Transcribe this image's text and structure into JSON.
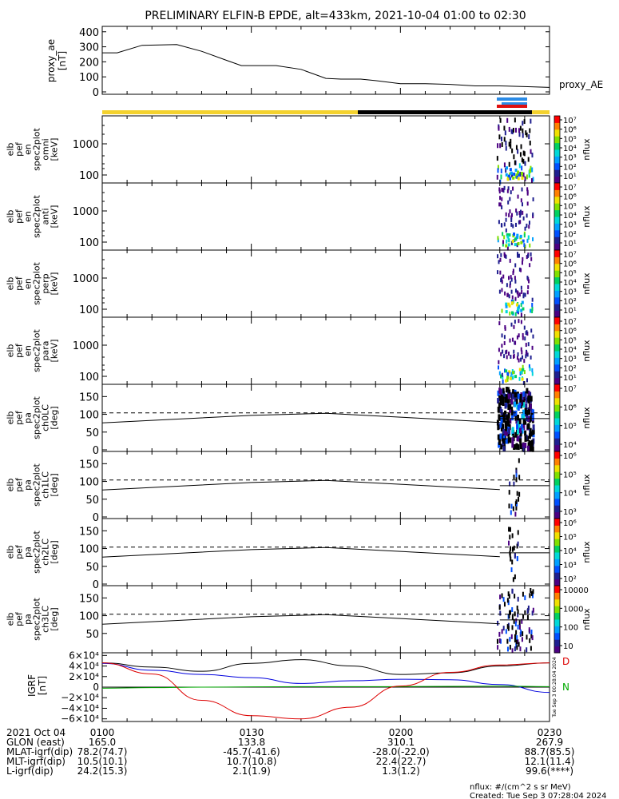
{
  "title": "PRELIMINARY ELFIN-B EPDE, alt=433km, 2021-10-04 01:00 to 02:30",
  "colors": {
    "day": "#f4d22e",
    "night": "#000000",
    "seg_blue": "#2b8be6",
    "seg_red": "#e01010",
    "bx": "#0000dd",
    "by": "#00aa00",
    "bz": "#dd0000",
    "btotal": "#000000"
  },
  "chart_data": [
    {
      "type": "line",
      "panel": "proxy_ae",
      "ylabel": "proxy_ae [nT]",
      "legend": "proxy_AE",
      "ylim": [
        0,
        420
      ],
      "yticks": [
        "400",
        "300",
        "200",
        "100",
        "0"
      ],
      "x_minutes": [
        0,
        3,
        8,
        15,
        20,
        25,
        28,
        32,
        35,
        40,
        45,
        48,
        52,
        55,
        60,
        65,
        70,
        75,
        80,
        85,
        90
      ],
      "values": [
        260,
        260,
        310,
        315,
        270,
        210,
        175,
        175,
        175,
        150,
        90,
        85,
        85,
        75,
        55,
        55,
        50,
        40,
        40,
        35,
        30
      ]
    },
    {
      "type": "heatmap",
      "panel": "elb_pef_en_spec2plot_omni",
      "ylabel": [
        "elb",
        "pef",
        "en",
        "spec2plot",
        "omni",
        "[keV]"
      ],
      "scale": "log",
      "yticks": [
        "1000",
        "100"
      ],
      "colorbar": {
        "label": "nflux",
        "ticks": [
          "10⁷",
          "10⁶",
          "10⁵",
          "10⁴",
          "10³",
          "10²",
          "10¹"
        ]
      },
      "active_window_minutes": [
        80,
        85
      ]
    },
    {
      "type": "heatmap",
      "panel": "elb_pef_en_spec2plot_anti",
      "ylabel": [
        "elb",
        "pef",
        "en",
        "spec2plot",
        "anti",
        "[keV]"
      ],
      "scale": "log",
      "yticks": [
        "1000",
        "100"
      ],
      "colorbar": {
        "label": "nflux",
        "ticks": [
          "10⁷",
          "10⁶",
          "10⁵",
          "10⁴",
          "10³",
          "10²",
          "10¹"
        ]
      },
      "active_window_minutes": [
        80,
        85
      ]
    },
    {
      "type": "heatmap",
      "panel": "elb_pef_en_spec2plot_perp",
      "ylabel": [
        "elb",
        "pef",
        "en",
        "spec2plot",
        "perp",
        "[keV]"
      ],
      "scale": "log",
      "yticks": [
        "1000",
        "100"
      ],
      "colorbar": {
        "label": "nflux",
        "ticks": [
          "10⁷",
          "10⁶",
          "10⁵",
          "10⁴",
          "10³",
          "10²",
          "10¹"
        ]
      },
      "active_window_minutes": [
        80,
        85
      ]
    },
    {
      "type": "heatmap",
      "panel": "elb_pef_en_spec2plot_para",
      "ylabel": [
        "elb",
        "pef",
        "en",
        "spec2plot",
        "para",
        "[keV]"
      ],
      "scale": "log",
      "yticks": [
        "1000",
        "100"
      ],
      "colorbar": {
        "label": "nflux",
        "ticks": [
          "10⁷",
          "10⁶",
          "10⁵",
          "10⁴",
          "10³",
          "10²",
          "10¹"
        ]
      },
      "active_window_minutes": [
        80,
        85
      ]
    },
    {
      "type": "heatmap",
      "panel": "elb_pef_pa_spec2plot_ch0LC",
      "ylabel": [
        "elb",
        "pef",
        "pa",
        "spec2plot",
        "ch0LC",
        "[deg]"
      ],
      "ylim": [
        0,
        180
      ],
      "yticks": [
        "150",
        "100",
        "50",
        "0"
      ],
      "colorbar": {
        "label": "nflux",
        "ticks": [
          "10⁷",
          "10⁶",
          "10⁵",
          "10⁴"
        ]
      },
      "active_window_minutes": [
        80,
        85
      ]
    },
    {
      "type": "heatmap",
      "panel": "elb_pef_pa_spec2plot_ch1LC",
      "ylabel": [
        "elb",
        "pef",
        "pa",
        "spec2plot",
        "ch1LC",
        "[deg]"
      ],
      "ylim": [
        0,
        180
      ],
      "yticks": [
        "150",
        "100",
        "50",
        "0"
      ],
      "colorbar": {
        "label": "nflux",
        "ticks": [
          "10⁶",
          "10⁵",
          "10⁴",
          "10³"
        ]
      },
      "active_window_minutes": [
        80,
        85
      ]
    },
    {
      "type": "heatmap",
      "panel": "elb_pef_pa_spec2plot_ch2LC",
      "ylabel": [
        "elb",
        "pef",
        "pa",
        "spec2plot",
        "ch2LC",
        "[deg]"
      ],
      "ylim": [
        0,
        180
      ],
      "yticks": [
        "150",
        "100",
        "50",
        "0"
      ],
      "colorbar": {
        "label": "nflux",
        "ticks": [
          "10⁶",
          "10⁵",
          "10⁴",
          "10³",
          "10²"
        ]
      },
      "active_window_minutes": [
        80,
        85
      ]
    },
    {
      "type": "heatmap",
      "panel": "elb_pef_pa_spec2plot_ch3LC",
      "ylabel": [
        "elb",
        "pef",
        "pa",
        "spec2plot",
        "ch3LC",
        "[deg]"
      ],
      "ylim": [
        0,
        180
      ],
      "yticks": [
        "150",
        "100",
        "50"
      ],
      "colorbar": {
        "label": "nflux",
        "ticks": [
          "10000",
          "1000",
          "100",
          "10"
        ]
      },
      "active_window_minutes": [
        80,
        85
      ]
    },
    {
      "type": "line",
      "panel": "igrf",
      "ylabel": "IGRF [nT]",
      "ylim": [
        -65000,
        65000
      ],
      "yticks": [
        "6×10⁴",
        "4×10⁴",
        "2×10⁴",
        "0",
        "−2×10⁴",
        "−4×10⁴",
        "−6×10⁴"
      ],
      "legend": [
        "D",
        "N"
      ],
      "x_minutes": [
        0,
        10,
        20,
        30,
        40,
        50,
        60,
        70,
        80,
        90
      ],
      "series": [
        {
          "name": "Btotal",
          "values": [
            46000,
            38000,
            30000,
            45000,
            52000,
            40000,
            24000,
            27000,
            40000,
            46000
          ]
        },
        {
          "name": "Bx",
          "values": [
            45000,
            32000,
            24000,
            18000,
            7000,
            12000,
            15000,
            14000,
            5000,
            -10000
          ]
        },
        {
          "name": "By",
          "values": [
            -2000,
            -1000,
            0,
            500,
            1000,
            1000,
            1000,
            1500,
            2000,
            1000
          ]
        },
        {
          "name": "Bz",
          "values": [
            46000,
            25000,
            -25000,
            -54000,
            -60000,
            -38000,
            2000,
            28000,
            42000,
            46000
          ]
        }
      ]
    }
  ],
  "axis": {
    "rows": [
      {
        "label": "2021 Oct 04",
        "values": [
          "0100",
          "0130",
          "0200",
          "0230"
        ]
      },
      {
        "label": "GLON (east)",
        "values": [
          "165.0",
          "133.8",
          "310.1",
          "267.9"
        ]
      },
      {
        "label": "MLAT-igrf(dip)",
        "values": [
          "78.2(74.7)",
          "-45.7(-41.6)",
          "-28.0(-22.0)",
          "88.7(85.5)"
        ]
      },
      {
        "label": "MLT-igrf(dip)",
        "values": [
          "10.5(10.1)",
          "10.7(10.8)",
          "22.4(22.7)",
          "12.1(11.4)"
        ]
      },
      {
        "label": "L-igrf(dip)",
        "values": [
          "24.2(15.3)",
          "2.1(1.9)",
          "1.3(1.2)",
          "99.6(****)"
        ]
      }
    ]
  },
  "footer": {
    "units": "nflux: #/(cm^2 s sr MeV)",
    "created": "Created: Tue Sep  3 07:28:04 2024",
    "side_stamp": "Tue Sep  3 00:28:04 2024"
  }
}
